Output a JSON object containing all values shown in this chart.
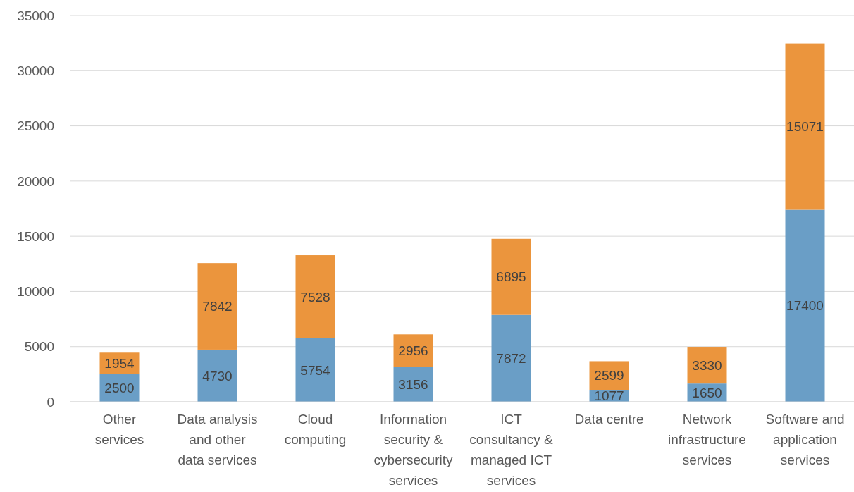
{
  "chart_data": {
    "type": "bar",
    "stacked": true,
    "categories": [
      "Other services",
      "Data analysis and other data services",
      "Cloud computing",
      "Information security & cybersecurity services",
      "ICT consultancy & managed ICT services",
      "Data centre",
      "Network infrastructure services",
      "Software and application services"
    ],
    "series": [
      {
        "color": "#6a9ec6",
        "values": [
          2500,
          4730,
          5754,
          3156,
          7872,
          1077,
          1650,
          17400
        ]
      },
      {
        "color": "#eb953d",
        "values": [
          1954,
          7842,
          7528,
          2956,
          6895,
          2599,
          3330,
          15071
        ]
      }
    ],
    "ylim": [
      0,
      35000
    ],
    "yticks": [
      0,
      5000,
      10000,
      15000,
      20000,
      25000,
      30000,
      35000
    ],
    "grid": "y",
    "data_labels": true
  }
}
